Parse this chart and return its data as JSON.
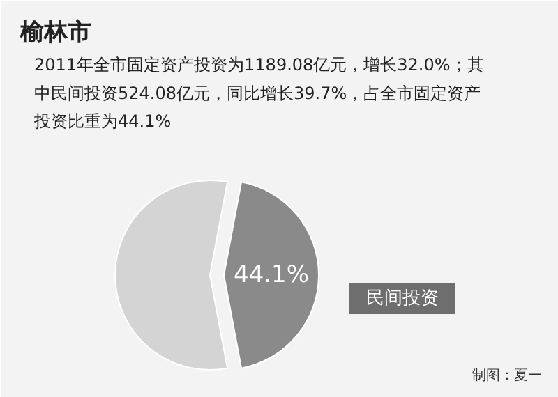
{
  "chart_data": {
    "type": "pie",
    "title": "榆林市",
    "subtitle": "2011年全市固定资产投资为1189.08亿元，增长32.0%；其中民间投资524.08亿元，同比增长39.7%，占全市固定资产投资比重为44.1%",
    "categories": [
      null,
      "民间投资"
    ],
    "values": [
      55.9,
      44.1
    ],
    "colors": [
      "#d4d4d4",
      "#8a8a8a"
    ],
    "value_labels": [
      null,
      "44.1%"
    ],
    "annotations": [
      "制图：夏一"
    ]
  }
}
